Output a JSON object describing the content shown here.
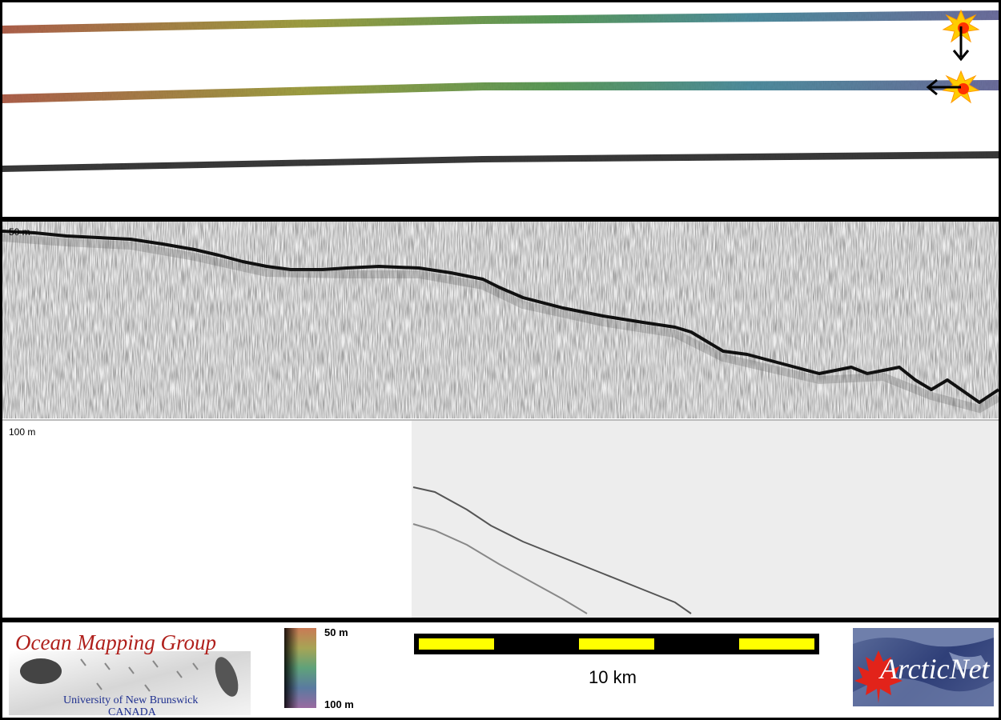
{
  "profile": {
    "top_depth_label": "50 m",
    "bottom_depth_label": "100 m"
  },
  "legend": {
    "colorbar_top": "50 m",
    "colorbar_bottom": "100 m",
    "scale_label": "10 km"
  },
  "logos": {
    "omg_title": "Ocean Mapping Group",
    "omg_university": "University of New Brunswick",
    "omg_country": "CANADA",
    "arcticnet": "ArcticNet"
  },
  "colors": {
    "background": "#000000",
    "scale_segment": "#ffff00",
    "omg_red": "#b0201c",
    "omg_blue": "#1e2f8f",
    "arcticnet_blue": "#2f3f78",
    "maple_red": "#e2231a"
  },
  "markers": {
    "icons": [
      "sun-marker-icon",
      "arrow-down-icon",
      "arrow-left-icon"
    ]
  }
}
